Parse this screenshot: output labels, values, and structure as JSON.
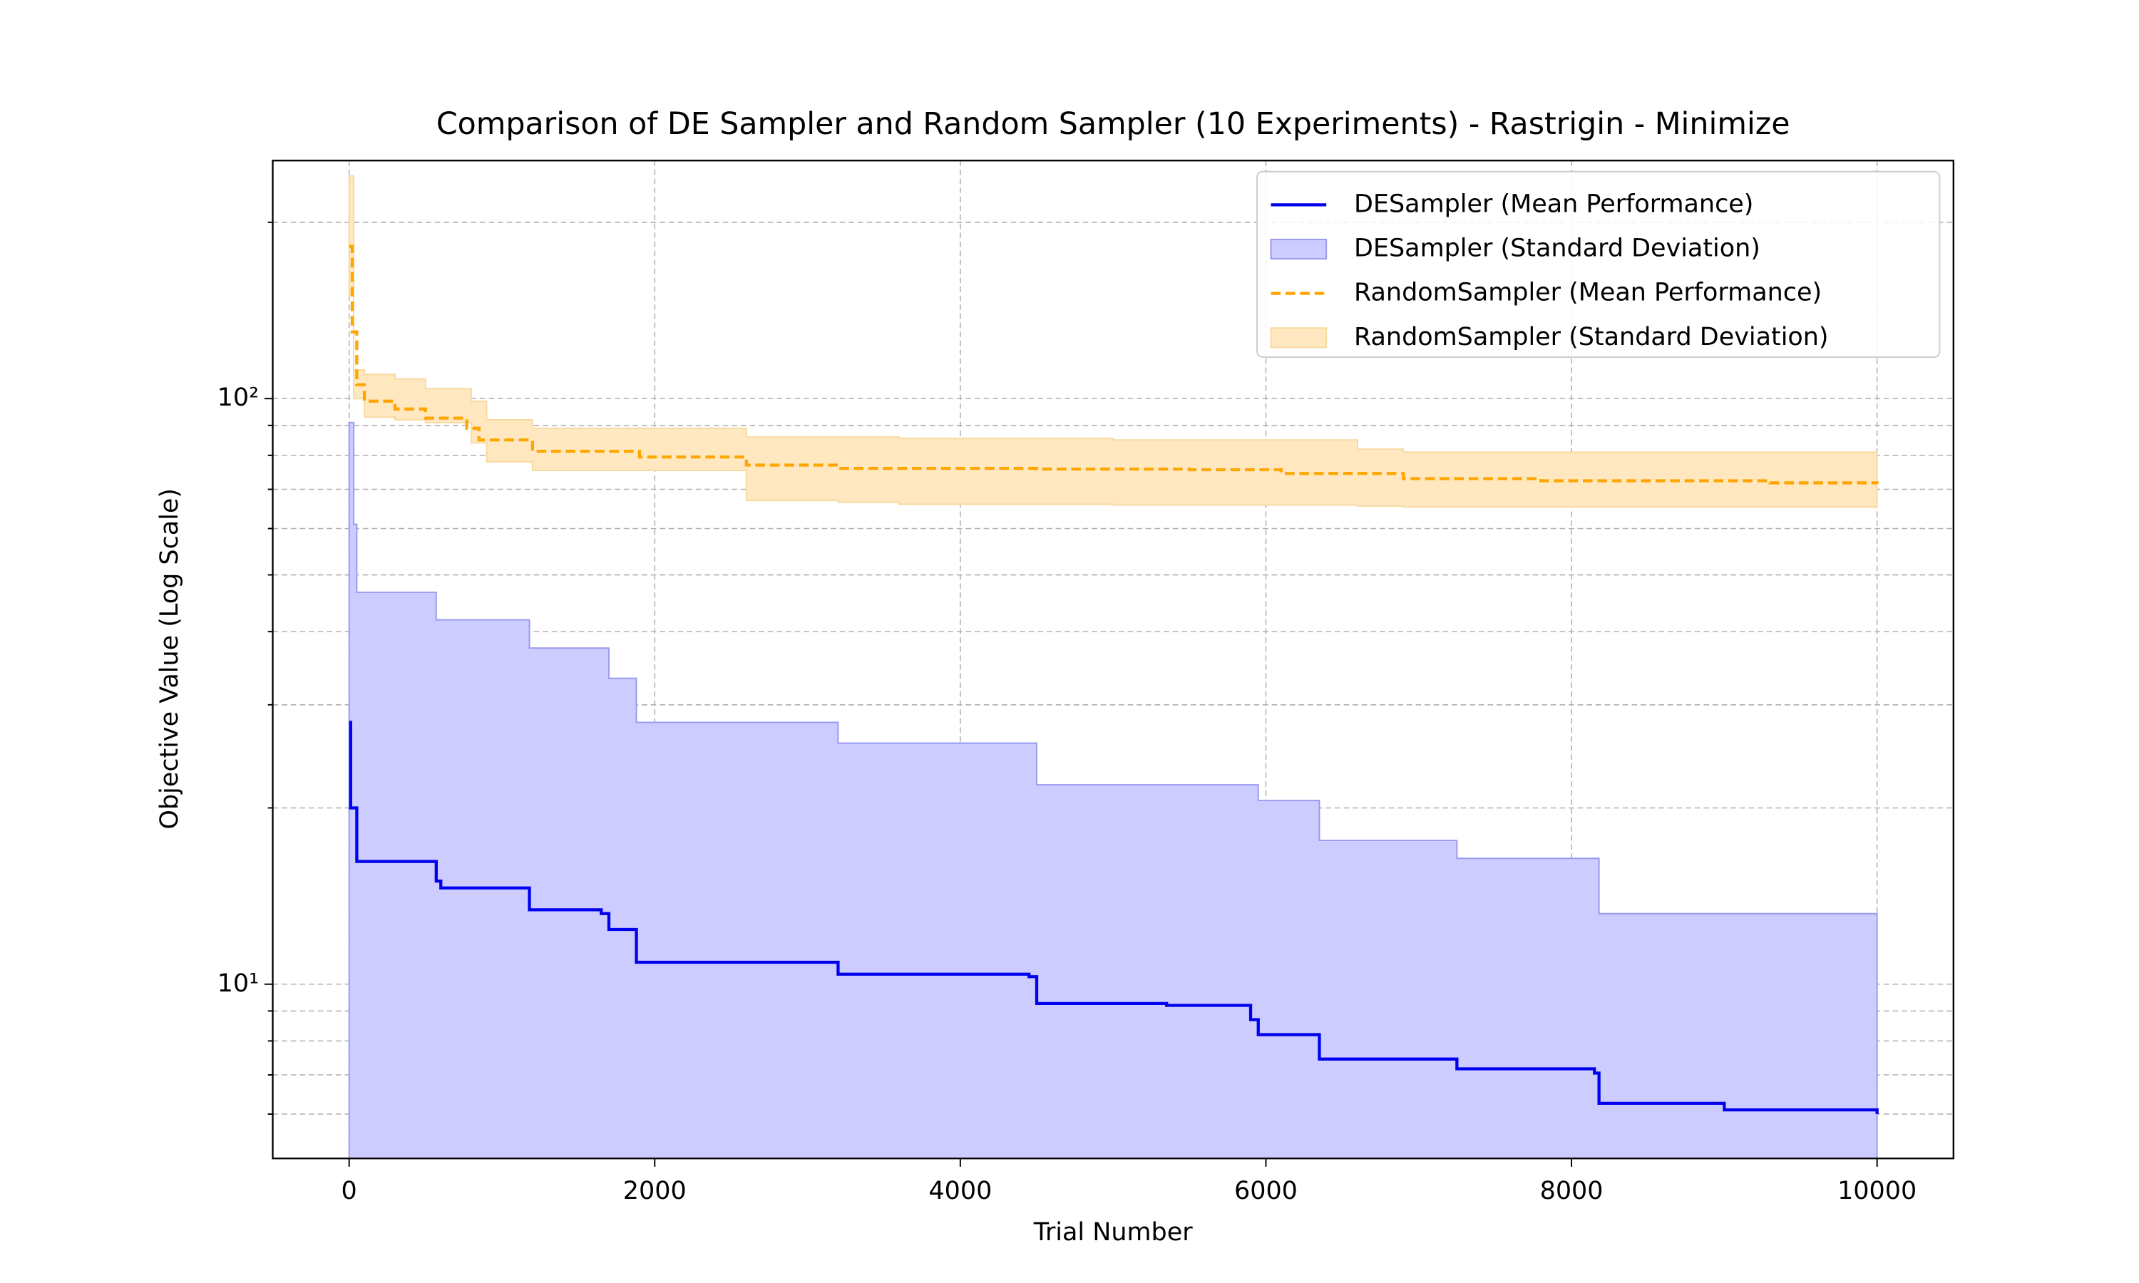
{
  "chart_data": {
    "type": "line",
    "title": "Comparison of DE Sampler and Random Sampler (10 Experiments) - Rastrigin - Minimize",
    "x_label": "Trial Number",
    "y_label": "Objective Value (Log Scale)",
    "log_y": true,
    "grid": true,
    "legend": "upper right",
    "xlim": [
      -500,
      10500
    ],
    "ylim": [
      5.04,
      255
    ],
    "xticks": [
      0,
      2000,
      4000,
      6000,
      8000,
      10000
    ],
    "yticks": [
      {
        "value": 10,
        "label": "10¹"
      },
      {
        "value": 100,
        "label": "10²"
      }
    ],
    "yminorticks": [
      6,
      7,
      8,
      9,
      20,
      30,
      40,
      50,
      60,
      70,
      80,
      90,
      200
    ],
    "series": [
      {
        "name": "DESampler (Mean Performance)",
        "kind": "line",
        "style": "solid",
        "color": "#0000ee",
        "x": [
          0,
          10,
          50,
          570,
          600,
          1180,
          1650,
          1700,
          1880,
          3200,
          4450,
          4500,
          5350,
          5900,
          5950,
          6350,
          7250,
          8150,
          8180,
          9000,
          10000
        ],
        "values": [
          28,
          20,
          16.2,
          15,
          14.6,
          13.4,
          13.2,
          12.4,
          10.9,
          10.4,
          10.3,
          9.27,
          9.2,
          8.7,
          8.2,
          7.45,
          7.17,
          7.05,
          6.26,
          6.1,
          6.0
        ]
      },
      {
        "name": "DESampler (Standard Deviation)",
        "kind": "band",
        "color": "#ccccff",
        "edge": "#9999f0",
        "x": [
          0,
          30,
          50,
          570,
          1180,
          1700,
          1880,
          3200,
          4500,
          5950,
          6350,
          7250,
          8180,
          10000
        ],
        "upper": [
          91,
          61,
          46.7,
          41.9,
          37.5,
          33.3,
          28,
          25.8,
          21.9,
          20.6,
          17.6,
          16.4,
          13.2,
          12.9
        ]
      },
      {
        "name": "RandomSampler (Mean Performance)",
        "kind": "line",
        "style": "dashed",
        "color": "#ffa500",
        "x": [
          0,
          20,
          50,
          100,
          300,
          500,
          770,
          850,
          1200,
          1900,
          2600,
          3200,
          4500,
          5500,
          6100,
          6900,
          7800,
          9300,
          10000
        ],
        "values": [
          182,
          130,
          105.6,
          99,
          96,
          92.6,
          89,
          85,
          81.3,
          79.5,
          77,
          76,
          75.8,
          75.6,
          74.5,
          73,
          72.4,
          71.8,
          71.6
        ]
      },
      {
        "name": "RandomSampler (Standard Deviation)",
        "kind": "band",
        "color": "#ffe8c0",
        "edge": "#f8d9a0",
        "x": [
          0,
          30,
          100,
          300,
          500,
          800,
          900,
          1200,
          2600,
          3200,
          3600,
          5000,
          6600,
          6900,
          10000
        ],
        "upper": [
          240,
          112,
          110,
          108,
          104,
          99,
          92,
          89,
          86,
          86,
          85.5,
          85,
          82,
          81,
          78
        ],
        "lower": [
          150,
          100,
          93,
          92,
          91,
          84,
          78,
          75.4,
          67,
          66.5,
          66,
          65.8,
          65.5,
          65.3,
          65
        ]
      }
    ]
  }
}
